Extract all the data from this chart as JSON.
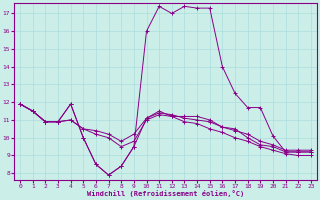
{
  "xlabel": "Windchill (Refroidissement éolien,°C)",
  "bg_color": "#cceee8",
  "grid_color": "#aadddd",
  "line_color": "#880088",
  "axis_color": "#880088",
  "xlim": [
    -0.5,
    23.5
  ],
  "ylim": [
    7.6,
    17.6
  ],
  "yticks": [
    8,
    9,
    10,
    11,
    12,
    13,
    14,
    15,
    16,
    17
  ],
  "xticks": [
    0,
    1,
    2,
    3,
    4,
    5,
    6,
    7,
    8,
    9,
    10,
    11,
    12,
    13,
    14,
    15,
    16,
    17,
    18,
    19,
    20,
    21,
    22,
    23
  ],
  "series": [
    {
      "x": [
        0,
        1,
        2,
        3,
        4,
        5,
        6,
        7,
        8,
        9,
        10,
        11,
        12,
        13,
        14,
        15,
        16,
        17,
        18,
        19,
        20,
        21,
        22,
        23
      ],
      "y": [
        11.9,
        11.5,
        10.9,
        10.9,
        11.9,
        10.0,
        8.5,
        7.9,
        8.4,
        9.5,
        11.1,
        11.5,
        11.2,
        11.2,
        11.2,
        11.0,
        10.6,
        10.5,
        10.0,
        9.6,
        9.5,
        9.2,
        9.2,
        9.2
      ]
    },
    {
      "x": [
        0,
        1,
        2,
        3,
        4,
        5,
        6,
        7,
        8,
        9,
        10,
        11,
        12,
        13,
        14,
        15,
        16,
        17,
        18,
        19,
        20,
        21,
        22,
        23
      ],
      "y": [
        11.9,
        11.5,
        10.9,
        10.9,
        11.9,
        10.0,
        8.5,
        7.9,
        8.4,
        9.5,
        16.0,
        17.4,
        17.0,
        17.4,
        17.3,
        17.3,
        14.0,
        12.5,
        11.7,
        11.7,
        10.1,
        9.2,
        9.2,
        9.2
      ]
    },
    {
      "x": [
        0,
        1,
        2,
        3,
        4,
        5,
        6,
        7,
        8,
        9,
        10,
        11,
        12,
        13,
        14,
        15,
        16,
        17,
        18,
        19,
        20,
        21,
        22,
        23
      ],
      "y": [
        11.9,
        11.5,
        10.9,
        10.9,
        11.0,
        10.5,
        10.4,
        10.2,
        9.8,
        10.2,
        11.1,
        11.4,
        11.3,
        11.1,
        11.0,
        10.9,
        10.6,
        10.4,
        10.2,
        9.8,
        9.6,
        9.3,
        9.3,
        9.3
      ]
    },
    {
      "x": [
        0,
        1,
        2,
        3,
        4,
        5,
        6,
        7,
        8,
        9,
        10,
        11,
        12,
        13,
        14,
        15,
        16,
        17,
        18,
        19,
        20,
        21,
        22,
        23
      ],
      "y": [
        11.9,
        11.5,
        10.9,
        10.9,
        11.0,
        10.5,
        10.2,
        10.0,
        9.5,
        9.8,
        11.0,
        11.3,
        11.2,
        10.9,
        10.8,
        10.5,
        10.3,
        10.0,
        9.8,
        9.5,
        9.3,
        9.1,
        9.0,
        9.0
      ]
    }
  ]
}
